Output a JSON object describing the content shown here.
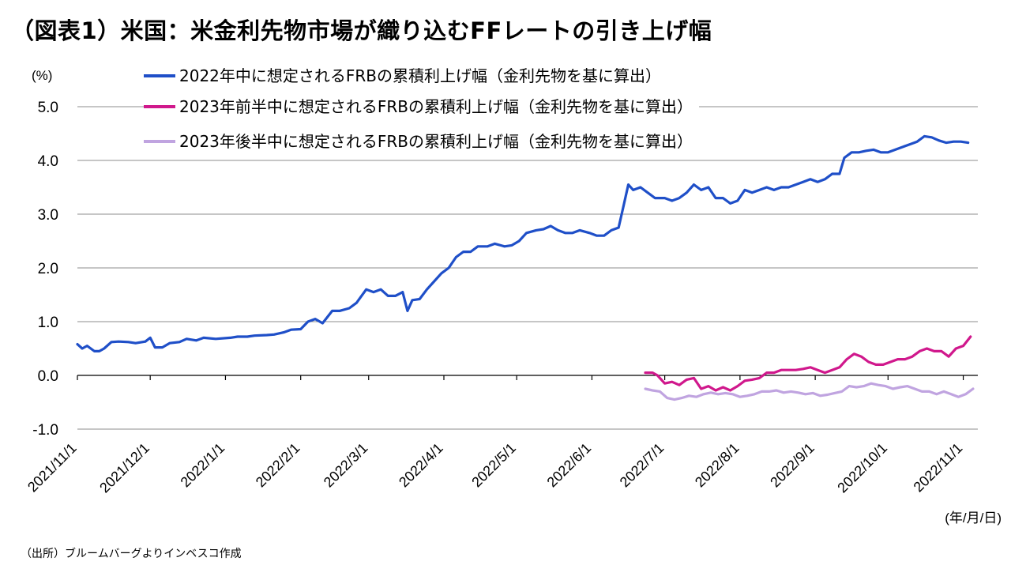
{
  "title": "（図表1）米国：米金利先物市場が織り込むFFレートの引き上げ幅",
  "source": "（出所）ブルームバーグよりインベスコ作成",
  "chart_data": {
    "type": "line",
    "y_unit": "(%)",
    "x_unit": "(年/月/日)",
    "ylim": [
      -1.0,
      5.0
    ],
    "yticks": [
      "5.0",
      "4.0",
      "3.0",
      "2.0",
      "1.0",
      "0.0",
      "-1.0"
    ],
    "ytick_values": [
      5,
      4,
      3,
      2,
      1,
      0,
      -1
    ],
    "negative_tick_color": "#cc0000",
    "grid": true,
    "legend_position": "top",
    "x_start": "2021-11-01",
    "x_end": "2022-11-07",
    "xticks": [
      "2021/11/1",
      "2021/12/1",
      "2022/1/1",
      "2022/2/1",
      "2022/3/1",
      "2022/4/1",
      "2022/5/1",
      "2022/6/1",
      "2022/7/1",
      "2022/8/1",
      "2022/9/1",
      "2022/10/1",
      "2022/11/1"
    ],
    "xtick_dates": [
      "2021-11-01",
      "2021-12-01",
      "2022-01-01",
      "2022-02-01",
      "2022-03-01",
      "2022-04-01",
      "2022-05-01",
      "2022-06-01",
      "2022-07-01",
      "2022-08-01",
      "2022-09-01",
      "2022-10-01",
      "2022-11-01"
    ],
    "series": [
      {
        "name": "2022年中に想定されるFRBの累積利上げ幅（金利先物を基に算出）",
        "color": "#1f4fc8",
        "points": [
          [
            "2021-11-01",
            0.58
          ],
          [
            "2021-11-03",
            0.5
          ],
          [
            "2021-11-05",
            0.55
          ],
          [
            "2021-11-08",
            0.45
          ],
          [
            "2021-11-10",
            0.45
          ],
          [
            "2021-11-12",
            0.5
          ],
          [
            "2021-11-15",
            0.62
          ],
          [
            "2021-11-18",
            0.63
          ],
          [
            "2021-11-22",
            0.62
          ],
          [
            "2021-11-25",
            0.6
          ],
          [
            "2021-11-29",
            0.63
          ],
          [
            "2021-12-01",
            0.7
          ],
          [
            "2021-12-03",
            0.52
          ],
          [
            "2021-12-06",
            0.52
          ],
          [
            "2021-12-09",
            0.6
          ],
          [
            "2021-12-13",
            0.62
          ],
          [
            "2021-12-16",
            0.68
          ],
          [
            "2021-12-20",
            0.65
          ],
          [
            "2021-12-23",
            0.7
          ],
          [
            "2021-12-28",
            0.68
          ],
          [
            "2022-01-03",
            0.7
          ],
          [
            "2022-01-06",
            0.72
          ],
          [
            "2022-01-10",
            0.72
          ],
          [
            "2022-01-13",
            0.74
          ],
          [
            "2022-01-18",
            0.75
          ],
          [
            "2022-01-21",
            0.76
          ],
          [
            "2022-01-25",
            0.8
          ],
          [
            "2022-01-28",
            0.85
          ],
          [
            "2022-02-01",
            0.86
          ],
          [
            "2022-02-04",
            1.0
          ],
          [
            "2022-02-07",
            1.05
          ],
          [
            "2022-02-10",
            0.97
          ],
          [
            "2022-02-14",
            1.2
          ],
          [
            "2022-02-17",
            1.2
          ],
          [
            "2022-02-21",
            1.25
          ],
          [
            "2022-02-24",
            1.35
          ],
          [
            "2022-02-28",
            1.6
          ],
          [
            "2022-03-03",
            1.55
          ],
          [
            "2022-03-06",
            1.6
          ],
          [
            "2022-03-09",
            1.48
          ],
          [
            "2022-03-12",
            1.48
          ],
          [
            "2022-03-15",
            1.55
          ],
          [
            "2022-03-17",
            1.2
          ],
          [
            "2022-03-19",
            1.4
          ],
          [
            "2022-03-22",
            1.42
          ],
          [
            "2022-03-25",
            1.6
          ],
          [
            "2022-03-28",
            1.75
          ],
          [
            "2022-03-31",
            1.9
          ],
          [
            "2022-04-03",
            2.0
          ],
          [
            "2022-04-06",
            2.2
          ],
          [
            "2022-04-09",
            2.3
          ],
          [
            "2022-04-12",
            2.3
          ],
          [
            "2022-04-15",
            2.4
          ],
          [
            "2022-04-19",
            2.4
          ],
          [
            "2022-04-22",
            2.45
          ],
          [
            "2022-04-26",
            2.4
          ],
          [
            "2022-04-29",
            2.42
          ],
          [
            "2022-05-02",
            2.5
          ],
          [
            "2022-05-05",
            2.65
          ],
          [
            "2022-05-09",
            2.7
          ],
          [
            "2022-05-12",
            2.72
          ],
          [
            "2022-05-15",
            2.78
          ],
          [
            "2022-05-18",
            2.7
          ],
          [
            "2022-05-21",
            2.65
          ],
          [
            "2022-05-24",
            2.65
          ],
          [
            "2022-05-27",
            2.7
          ],
          [
            "2022-05-31",
            2.65
          ],
          [
            "2022-06-03",
            2.6
          ],
          [
            "2022-06-06",
            2.6
          ],
          [
            "2022-06-09",
            2.7
          ],
          [
            "2022-06-12",
            2.75
          ],
          [
            "2022-06-14",
            3.15
          ],
          [
            "2022-06-16",
            3.55
          ],
          [
            "2022-06-18",
            3.45
          ],
          [
            "2022-06-21",
            3.5
          ],
          [
            "2022-06-24",
            3.4
          ],
          [
            "2022-06-27",
            3.3
          ],
          [
            "2022-07-01",
            3.3
          ],
          [
            "2022-07-04",
            3.25
          ],
          [
            "2022-07-07",
            3.3
          ],
          [
            "2022-07-10",
            3.4
          ],
          [
            "2022-07-13",
            3.55
          ],
          [
            "2022-07-16",
            3.45
          ],
          [
            "2022-07-19",
            3.5
          ],
          [
            "2022-07-22",
            3.3
          ],
          [
            "2022-07-25",
            3.3
          ],
          [
            "2022-07-28",
            3.2
          ],
          [
            "2022-07-31",
            3.25
          ],
          [
            "2022-08-03",
            3.45
          ],
          [
            "2022-08-06",
            3.4
          ],
          [
            "2022-08-09",
            3.45
          ],
          [
            "2022-08-12",
            3.5
          ],
          [
            "2022-08-15",
            3.45
          ],
          [
            "2022-08-18",
            3.5
          ],
          [
            "2022-08-21",
            3.5
          ],
          [
            "2022-08-24",
            3.55
          ],
          [
            "2022-08-27",
            3.6
          ],
          [
            "2022-08-30",
            3.65
          ],
          [
            "2022-09-02",
            3.6
          ],
          [
            "2022-09-05",
            3.65
          ],
          [
            "2022-09-08",
            3.75
          ],
          [
            "2022-09-11",
            3.75
          ],
          [
            "2022-09-13",
            4.05
          ],
          [
            "2022-09-16",
            4.15
          ],
          [
            "2022-09-19",
            4.15
          ],
          [
            "2022-09-22",
            4.18
          ],
          [
            "2022-09-25",
            4.2
          ],
          [
            "2022-09-28",
            4.15
          ],
          [
            "2022-10-01",
            4.15
          ],
          [
            "2022-10-04",
            4.2
          ],
          [
            "2022-10-07",
            4.25
          ],
          [
            "2022-10-10",
            4.3
          ],
          [
            "2022-10-13",
            4.35
          ],
          [
            "2022-10-16",
            4.45
          ],
          [
            "2022-10-19",
            4.43
          ],
          [
            "2022-10-22",
            4.37
          ],
          [
            "2022-10-25",
            4.33
          ],
          [
            "2022-10-28",
            4.35
          ],
          [
            "2022-10-31",
            4.35
          ],
          [
            "2022-11-03",
            4.33
          ]
        ]
      },
      {
        "name": "2023年前半中に想定されるFRBの累積利上げ幅（金利先物を基に算出）",
        "color": "#d0188c",
        "points": [
          [
            "2022-06-23",
            0.05
          ],
          [
            "2022-06-26",
            0.05
          ],
          [
            "2022-06-28",
            0.0
          ],
          [
            "2022-07-01",
            -0.15
          ],
          [
            "2022-07-04",
            -0.12
          ],
          [
            "2022-07-07",
            -0.18
          ],
          [
            "2022-07-10",
            -0.08
          ],
          [
            "2022-07-13",
            -0.05
          ],
          [
            "2022-07-16",
            -0.25
          ],
          [
            "2022-07-19",
            -0.2
          ],
          [
            "2022-07-22",
            -0.28
          ],
          [
            "2022-07-25",
            -0.22
          ],
          [
            "2022-07-28",
            -0.28
          ],
          [
            "2022-07-31",
            -0.2
          ],
          [
            "2022-08-03",
            -0.1
          ],
          [
            "2022-08-06",
            -0.08
          ],
          [
            "2022-08-09",
            -0.05
          ],
          [
            "2022-08-12",
            0.05
          ],
          [
            "2022-08-15",
            0.05
          ],
          [
            "2022-08-18",
            0.1
          ],
          [
            "2022-08-21",
            0.1
          ],
          [
            "2022-08-24",
            0.1
          ],
          [
            "2022-08-27",
            0.12
          ],
          [
            "2022-08-30",
            0.15
          ],
          [
            "2022-09-02",
            0.1
          ],
          [
            "2022-09-05",
            0.05
          ],
          [
            "2022-09-08",
            0.1
          ],
          [
            "2022-09-11",
            0.15
          ],
          [
            "2022-09-14",
            0.3
          ],
          [
            "2022-09-17",
            0.4
          ],
          [
            "2022-09-20",
            0.35
          ],
          [
            "2022-09-23",
            0.25
          ],
          [
            "2022-09-26",
            0.2
          ],
          [
            "2022-09-29",
            0.2
          ],
          [
            "2022-10-02",
            0.25
          ],
          [
            "2022-10-05",
            0.3
          ],
          [
            "2022-10-08",
            0.3
          ],
          [
            "2022-10-11",
            0.35
          ],
          [
            "2022-10-14",
            0.45
          ],
          [
            "2022-10-17",
            0.5
          ],
          [
            "2022-10-20",
            0.45
          ],
          [
            "2022-10-23",
            0.45
          ],
          [
            "2022-10-26",
            0.35
          ],
          [
            "2022-10-29",
            0.5
          ],
          [
            "2022-11-01",
            0.55
          ],
          [
            "2022-11-04",
            0.72
          ]
        ]
      },
      {
        "name": "2023年後半中に想定されるFRBの累積利上げ幅（金利先物を基に算出）",
        "color": "#c0a4e0",
        "points": [
          [
            "2022-06-23",
            -0.25
          ],
          [
            "2022-06-26",
            -0.28
          ],
          [
            "2022-06-29",
            -0.3
          ],
          [
            "2022-07-02",
            -0.42
          ],
          [
            "2022-07-05",
            -0.45
          ],
          [
            "2022-07-08",
            -0.42
          ],
          [
            "2022-07-11",
            -0.38
          ],
          [
            "2022-07-14",
            -0.4
          ],
          [
            "2022-07-17",
            -0.35
          ],
          [
            "2022-07-20",
            -0.32
          ],
          [
            "2022-07-23",
            -0.35
          ],
          [
            "2022-07-26",
            -0.33
          ],
          [
            "2022-07-29",
            -0.35
          ],
          [
            "2022-08-01",
            -0.4
          ],
          [
            "2022-08-04",
            -0.38
          ],
          [
            "2022-08-07",
            -0.35
          ],
          [
            "2022-08-10",
            -0.3
          ],
          [
            "2022-08-13",
            -0.3
          ],
          [
            "2022-08-16",
            -0.28
          ],
          [
            "2022-08-19",
            -0.32
          ],
          [
            "2022-08-22",
            -0.3
          ],
          [
            "2022-08-25",
            -0.32
          ],
          [
            "2022-08-28",
            -0.35
          ],
          [
            "2022-08-31",
            -0.33
          ],
          [
            "2022-09-03",
            -0.38
          ],
          [
            "2022-09-06",
            -0.36
          ],
          [
            "2022-09-09",
            -0.33
          ],
          [
            "2022-09-12",
            -0.3
          ],
          [
            "2022-09-15",
            -0.2
          ],
          [
            "2022-09-18",
            -0.22
          ],
          [
            "2022-09-21",
            -0.2
          ],
          [
            "2022-09-24",
            -0.15
          ],
          [
            "2022-09-27",
            -0.18
          ],
          [
            "2022-09-30",
            -0.2
          ],
          [
            "2022-10-03",
            -0.25
          ],
          [
            "2022-10-06",
            -0.22
          ],
          [
            "2022-10-09",
            -0.2
          ],
          [
            "2022-10-12",
            -0.25
          ],
          [
            "2022-10-15",
            -0.3
          ],
          [
            "2022-10-18",
            -0.3
          ],
          [
            "2022-10-21",
            -0.35
          ],
          [
            "2022-10-24",
            -0.3
          ],
          [
            "2022-10-27",
            -0.35
          ],
          [
            "2022-10-30",
            -0.4
          ],
          [
            "2022-11-02",
            -0.35
          ],
          [
            "2022-11-05",
            -0.25
          ]
        ]
      }
    ]
  }
}
